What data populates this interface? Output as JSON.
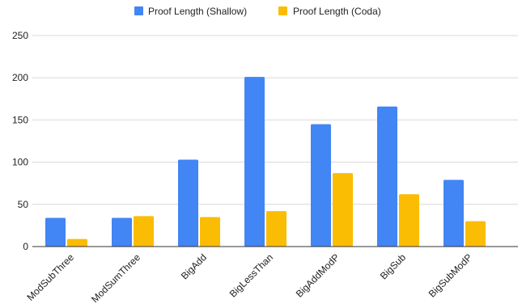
{
  "chart_data": {
    "type": "bar",
    "title": "",
    "xlabel": "",
    "ylabel": "",
    "ylim": [
      0,
      250
    ],
    "yticks": [
      0,
      50,
      100,
      150,
      200,
      250
    ],
    "grid": true,
    "legend_position": "top",
    "categories": [
      "ModSubThree",
      "ModSumThree",
      "BigAdd",
      "BigLessThan",
      "BigAddModP",
      "BigSub",
      "BigSubModP"
    ],
    "series": [
      {
        "name": "Proof Length (Shallow)",
        "color": "#4285f4",
        "values": [
          34,
          34,
          103,
          201,
          145,
          166,
          79
        ]
      },
      {
        "name": "Proof Length (Coda)",
        "color": "#fbbc04",
        "values": [
          9,
          36,
          35,
          42,
          87,
          62,
          30
        ]
      }
    ]
  }
}
